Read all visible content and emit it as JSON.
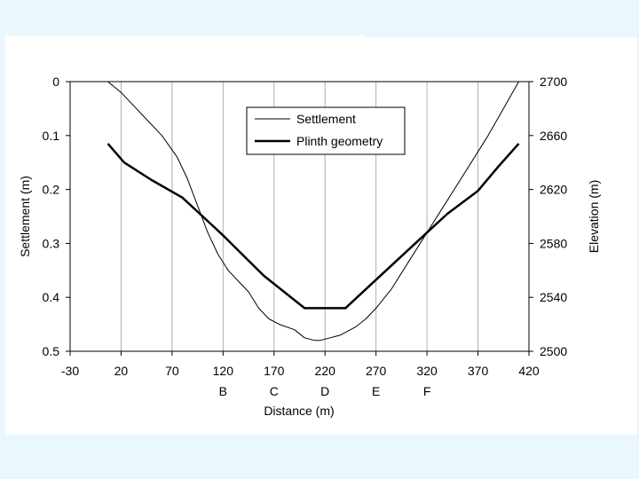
{
  "chart_data": {
    "type": "line",
    "xlabel": "Distance (m)",
    "ylabel_left": "Settlement (m)",
    "ylabel_right": "Elevation (m)",
    "xlim": [
      -30,
      420
    ],
    "x_ticks": [
      "-30",
      "20",
      "70",
      "120",
      "170",
      "220",
      "270",
      "320",
      "370",
      "420"
    ],
    "x_tick_values": [
      -30,
      20,
      70,
      120,
      170,
      220,
      270,
      320,
      370,
      420
    ],
    "section_labels": [
      {
        "label": "B",
        "x": 120
      },
      {
        "label": "C",
        "x": 170
      },
      {
        "label": "D",
        "x": 220
      },
      {
        "label": "E",
        "x": 270
      },
      {
        "label": "F",
        "x": 320
      }
    ],
    "ylim_left": [
      0,
      0.5
    ],
    "y_left_ticks": [
      "0",
      "0.1",
      "0.2",
      "0.3",
      "0.4",
      "0.5"
    ],
    "y_left_tick_values": [
      0,
      0.1,
      0.2,
      0.3,
      0.4,
      0.5
    ],
    "left_axis_inverted": true,
    "ylim_right": [
      2500,
      2700
    ],
    "y_right_ticks": [
      "2700",
      "2660",
      "2620",
      "2580",
      "2540",
      "2500"
    ],
    "y_right_tick_values": [
      2700,
      2660,
      2620,
      2580,
      2540,
      2500
    ],
    "grid": "vertical",
    "legend_position": "top-center",
    "series": [
      {
        "name": "Settlement",
        "axis": "left",
        "color": "#000000",
        "line_weight": "thin",
        "x": [
          7,
          20,
          40,
          60,
          75,
          85,
          95,
          105,
          115,
          125,
          135,
          145,
          155,
          165,
          175,
          190,
          200,
          210,
          215,
          225,
          235,
          250,
          260,
          270,
          285,
          300,
          320,
          340,
          360,
          380,
          395,
          410
        ],
        "y": [
          0.0,
          0.02,
          0.06,
          0.1,
          0.14,
          0.18,
          0.23,
          0.28,
          0.32,
          0.35,
          0.37,
          0.39,
          0.42,
          0.44,
          0.45,
          0.46,
          0.475,
          0.48,
          0.48,
          0.475,
          0.47,
          0.455,
          0.44,
          0.42,
          0.385,
          0.34,
          0.28,
          0.22,
          0.16,
          0.1,
          0.05,
          0.0
        ]
      },
      {
        "name": "Plinth geometry",
        "axis": "right",
        "color": "#000000",
        "line_weight": "thick",
        "x": [
          7,
          23,
          50,
          80,
          100,
          120,
          140,
          160,
          200,
          240,
          260,
          320,
          340,
          370,
          390,
          410
        ],
        "y": [
          2654,
          2640,
          2627,
          2614,
          2600,
          2586,
          2571,
          2556,
          2532,
          2532,
          2546,
          2588,
          2602,
          2619,
          2637,
          2654
        ]
      }
    ]
  }
}
